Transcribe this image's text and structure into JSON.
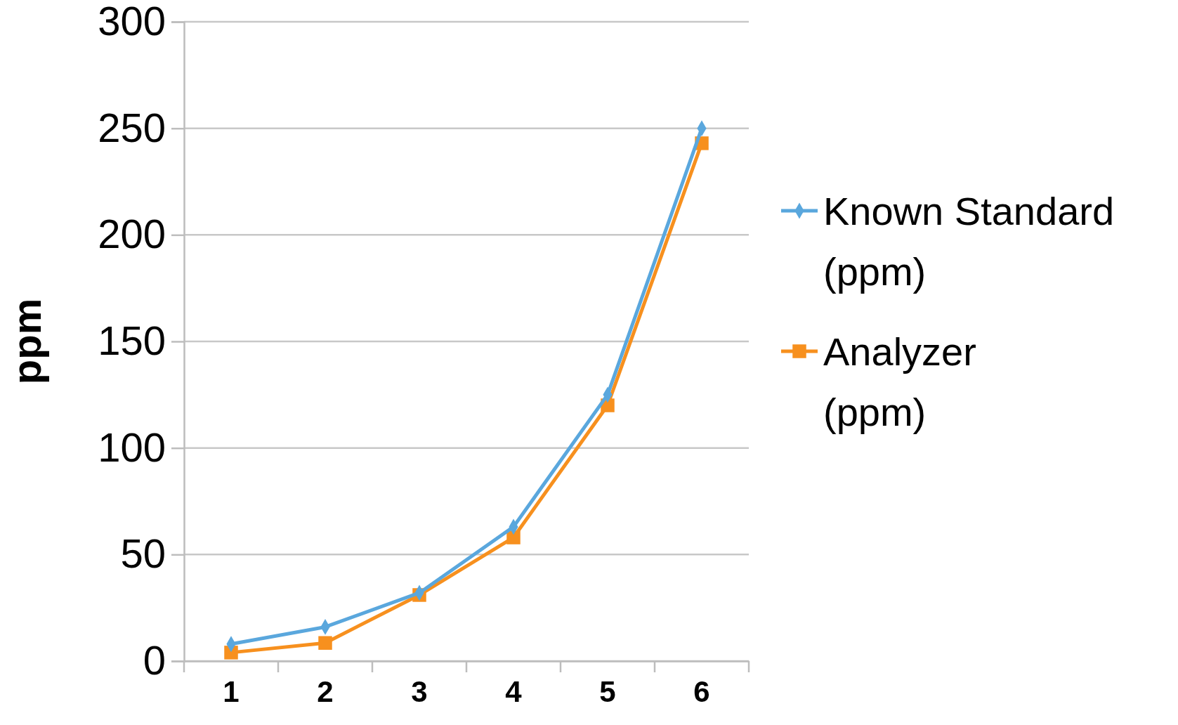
{
  "chart_data": {
    "type": "line",
    "ylabel": "ppm",
    "categories": [
      "1",
      "2",
      "3",
      "4",
      "5",
      "6"
    ],
    "series": [
      {
        "name": "Known Standard (ppm)",
        "color": "#5aa7dd",
        "marker": "diamond",
        "values": [
          8,
          16,
          32,
          63,
          125,
          250
        ]
      },
      {
        "name": "Analyzer (ppm)",
        "color": "#f7901e",
        "marker": "square",
        "values": [
          4,
          8.5,
          31,
          58,
          120,
          243
        ]
      }
    ],
    "ylim": [
      0,
      300
    ],
    "yticks": [
      0,
      50,
      100,
      150,
      200,
      250,
      300
    ],
    "grid": "y",
    "legend": "right"
  }
}
